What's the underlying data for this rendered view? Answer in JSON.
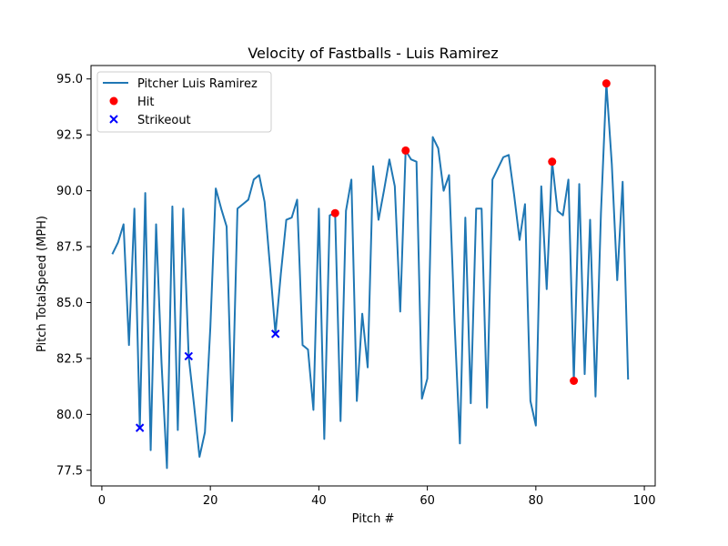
{
  "chart_data": {
    "type": "line",
    "title": "Velocity of Fastballs - Luis Ramirez",
    "xlabel": "Pitch #",
    "ylabel": "Pitch TotalSpeed (MPH)",
    "xlim": [
      -2,
      102
    ],
    "ylim": [
      76.8,
      95.6
    ],
    "xticks": [
      0,
      20,
      40,
      60,
      80,
      100
    ],
    "yticks": [
      77.5,
      80.0,
      82.5,
      85.0,
      87.5,
      90.0,
      92.5,
      95.0
    ],
    "grid": false,
    "legend_position": "upper-left",
    "colors": {
      "line": "#1f77b4",
      "hit": "#ff0000",
      "strikeout": "#0000ff"
    },
    "series": [
      {
        "name": "Pitcher Luis Ramirez",
        "kind": "line",
        "x": [
          2,
          3,
          4,
          5,
          6,
          7,
          8,
          9,
          10,
          11,
          12,
          13,
          14,
          15,
          16,
          17,
          18,
          19,
          20,
          21,
          22,
          23,
          24,
          25,
          26,
          27,
          28,
          29,
          30,
          31,
          32,
          33,
          34,
          35,
          36,
          37,
          38,
          39,
          40,
          41,
          42,
          43,
          44,
          45,
          46,
          47,
          48,
          49,
          50,
          51,
          52,
          53,
          54,
          55,
          56,
          57,
          58,
          59,
          60,
          61,
          62,
          63,
          64,
          65,
          66,
          67,
          68,
          69,
          70,
          71,
          72,
          73,
          74,
          75,
          76,
          77,
          78,
          79,
          80,
          81,
          82,
          83,
          84,
          85,
          86,
          87,
          88,
          89,
          90,
          91,
          92,
          93,
          94,
          95,
          96,
          97
        ],
        "y": [
          87.2,
          87.7,
          88.5,
          83.1,
          89.2,
          79.4,
          89.9,
          78.4,
          88.5,
          82.3,
          77.6,
          89.3,
          79.3,
          89.2,
          82.6,
          80.4,
          78.1,
          79.2,
          83.9,
          90.1,
          89.2,
          88.4,
          79.7,
          89.2,
          89.4,
          89.6,
          90.5,
          90.7,
          89.5,
          86.6,
          83.6,
          86.3,
          88.7,
          88.8,
          89.6,
          83.1,
          82.9,
          80.2,
          89.2,
          78.9,
          88.9,
          89.0,
          79.7,
          89.1,
          90.5,
          80.6,
          84.5,
          82.1,
          91.1,
          88.7,
          90.0,
          91.4,
          90.2,
          84.6,
          91.8,
          91.4,
          91.3,
          80.7,
          81.6,
          92.4,
          91.9,
          90.0,
          90.7,
          84.2,
          78.7,
          88.8,
          80.5,
          89.2,
          89.2,
          80.3,
          90.5,
          91.0,
          91.5,
          91.6,
          89.8,
          87.8,
          89.4,
          80.6,
          79.5,
          90.2,
          85.6,
          91.3,
          89.1,
          88.9,
          90.5,
          81.5,
          90.3,
          81.8,
          88.7,
          80.8,
          89.0,
          94.8,
          91.2,
          86.0,
          90.4,
          81.6
        ]
      },
      {
        "name": "Hit",
        "kind": "scatter",
        "marker": "circle",
        "x": [
          43,
          56,
          83,
          87,
          93
        ],
        "y": [
          89.0,
          91.8,
          91.3,
          81.5,
          94.8
        ]
      },
      {
        "name": "Strikeout",
        "kind": "scatter",
        "marker": "x",
        "x": [
          7,
          16,
          32
        ],
        "y": [
          79.4,
          82.6,
          83.6
        ]
      }
    ]
  }
}
